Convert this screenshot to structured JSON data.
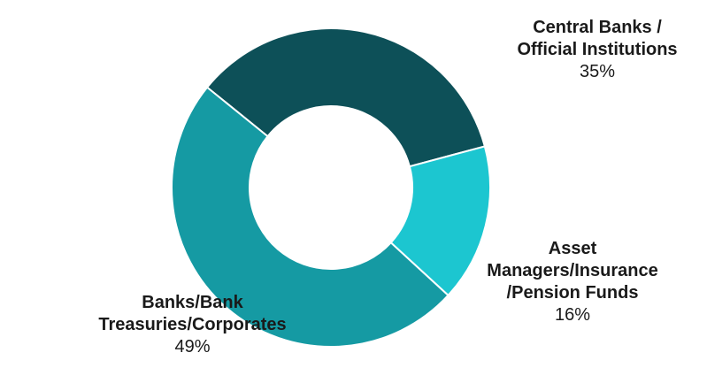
{
  "chart_data": {
    "type": "pie",
    "donut": true,
    "title": "",
    "slices": [
      {
        "label_line1": "Central Banks /",
        "label_line2": "Official Institutions",
        "label_line3": "",
        "value": 35,
        "display": "35%",
        "color": "#0d5058"
      },
      {
        "label_line1": "Asset",
        "label_line2": "Managers/Insurance",
        "label_line3": "/Pension Funds",
        "value": 16,
        "display": "16%",
        "color": "#1cc6d0"
      },
      {
        "label_line1": "Banks/Bank",
        "label_line2": "Treasuries/Corporates",
        "label_line3": "",
        "value": 49,
        "display": "49%",
        "color": "#159aa3"
      }
    ],
    "legend": "none"
  }
}
